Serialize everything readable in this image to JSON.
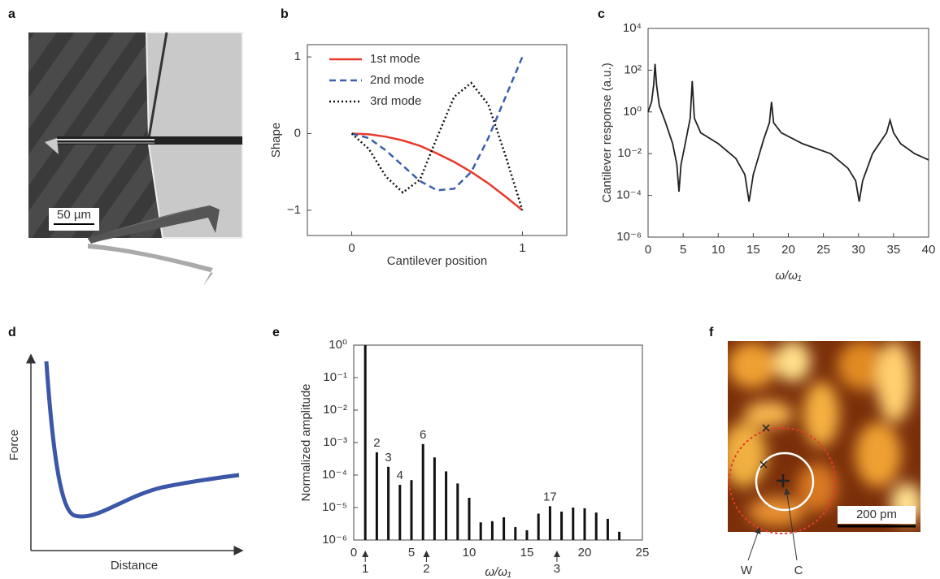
{
  "chart_data": [
    {
      "type": "image",
      "label": "a",
      "scale_bar": "50 µm"
    },
    {
      "type": "line",
      "label": "b",
      "xlabel": "Cantilever position",
      "ylabel": "Shape",
      "x": [
        0,
        0.1,
        0.2,
        0.3,
        0.4,
        0.5,
        0.6,
        0.7,
        0.8,
        0.9,
        1
      ],
      "series": [
        {
          "name": "1st mode",
          "color": "#e8392b",
          "dash": "solid",
          "values": [
            0,
            -0.01,
            -0.04,
            -0.09,
            -0.16,
            -0.26,
            -0.37,
            -0.5,
            -0.65,
            -0.82,
            -1
          ]
        },
        {
          "name": "2nd mode",
          "color": "#3b5fae",
          "dash": "dashed",
          "values": [
            0,
            -0.06,
            -0.22,
            -0.42,
            -0.62,
            -0.74,
            -0.72,
            -0.5,
            -0.06,
            0.47,
            1
          ]
        },
        {
          "name": "3rd mode",
          "color": "#111111",
          "dash": "dotted",
          "values": [
            0,
            -0.2,
            -0.56,
            -0.77,
            -0.6,
            -0.05,
            0.48,
            0.66,
            0.38,
            -0.28,
            -1
          ]
        }
      ],
      "xlim": [
        -0.26,
        1.26
      ],
      "ylim": [
        -1.33,
        1.16
      ],
      "xticks": [
        0,
        1
      ],
      "yticks": [
        {
          "value": -1,
          "label": "−1"
        },
        0,
        1
      ],
      "legend": "upper left"
    },
    {
      "type": "line",
      "label": "c",
      "xlabel": "ω/ω₁",
      "ylabel": "Cantilever response (a.u.)",
      "log_y": true,
      "color": "#222222",
      "x": [
        0,
        0.5,
        0.8,
        1,
        1.2,
        1.6,
        2.5,
        3.5,
        4.1,
        4.4,
        4.7,
        5.3,
        6,
        6.3,
        6.6,
        7.5,
        10,
        12.5,
        13.8,
        14.4,
        15,
        16.5,
        17.3,
        17.6,
        17.9,
        19,
        22,
        26,
        28.5,
        29.6,
        30.1,
        30.6,
        32,
        34,
        34.5,
        35,
        36,
        38,
        40
      ],
      "values": [
        1,
        3,
        20,
        200,
        20,
        2,
        0.3,
        0.03,
        0.003,
        0.00015,
        0.003,
        0.03,
        0.5,
        30,
        0.5,
        0.1,
        0.03,
        0.006,
        0.001,
        5e-05,
        0.001,
        0.05,
        0.3,
        3,
        0.3,
        0.1,
        0.03,
        0.01,
        0.002,
        0.0005,
        5e-05,
        0.0005,
        0.01,
        0.1,
        0.4,
        0.1,
        0.03,
        0.01,
        0.005
      ],
      "xlim": [
        0,
        40
      ],
      "ylim": [
        1e-06,
        10000
      ],
      "xticks": [
        0,
        5,
        10,
        15,
        20,
        25,
        30,
        35,
        40
      ],
      "yticks": [
        {
          "value": 1e-06,
          "label": "10⁻⁶"
        },
        {
          "value": 0.0001,
          "label": "10⁻⁴"
        },
        {
          "value": 0.01,
          "label": "10⁻²"
        },
        {
          "value": 1,
          "label": "10⁰"
        },
        {
          "value": 100,
          "label": "10²"
        },
        {
          "value": 10000,
          "label": "10⁴"
        }
      ]
    },
    {
      "type": "diagram",
      "label": "d",
      "xlabel": "Distance",
      "ylabel": "Force"
    },
    {
      "type": "bar",
      "label": "e",
      "xlabel": "ω/ω₁",
      "ylabel": "Normalized amplitude",
      "log_y": true,
      "color": "#111111",
      "x": [
        1,
        2,
        3,
        4,
        5,
        6,
        7,
        8,
        9,
        10,
        11,
        12,
        13,
        14,
        15,
        16,
        17,
        18,
        19,
        20,
        21,
        22,
        23
      ],
      "values": [
        1,
        0.0005,
        0.00018,
        5e-05,
        7e-05,
        0.0009,
        0.00035,
        0.00013,
        5.5e-05,
        2e-05,
        3.5e-06,
        3.8e-06,
        5e-06,
        2.5e-06,
        2e-06,
        6.5e-06,
        1.1e-05,
        7.5e-06,
        1e-05,
        9.5e-06,
        7e-06,
        4.5e-06,
        1.8e-06
      ],
      "xlim": [
        0,
        25
      ],
      "ylim": [
        1e-06,
        1
      ],
      "xticks": [
        0,
        5,
        10,
        15,
        20,
        25
      ],
      "yticks": [
        {
          "value": 1e-06,
          "label": "10⁻⁶"
        },
        {
          "value": 1e-05,
          "label": "10⁻⁵"
        },
        {
          "value": 0.0001,
          "label": "10⁻⁴"
        },
        {
          "value": 0.001,
          "label": "10⁻³"
        },
        {
          "value": 0.01,
          "label": "10⁻²"
        },
        {
          "value": 0.1,
          "label": "10⁻¹"
        },
        {
          "value": 1,
          "label": "10⁰"
        }
      ],
      "annotations": [
        {
          "text": "2",
          "x": 2
        },
        {
          "text": "3",
          "x": 3
        },
        {
          "text": "4",
          "x": 4
        },
        {
          "text": "6",
          "x": 6
        },
        {
          "text": "17",
          "x": 17
        }
      ],
      "arrows": [
        {
          "text": "1",
          "x": 1
        },
        {
          "text": "2",
          "x": 6.3
        },
        {
          "text": "3",
          "x": 17.6
        }
      ]
    },
    {
      "type": "image",
      "label": "f",
      "scale_bar": "200 pm",
      "annotations": [
        "W",
        "C"
      ]
    }
  ]
}
